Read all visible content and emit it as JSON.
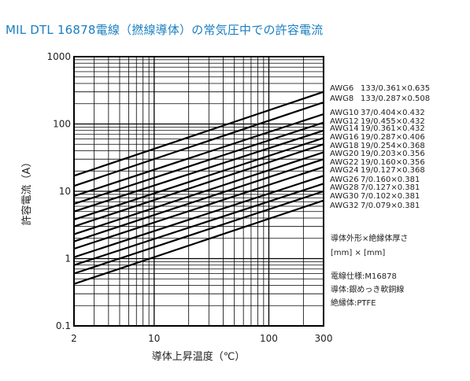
{
  "title": "MIL DTL 16878電線（撚線導体）の常気圧中での許容電流",
  "chart_data": {
    "type": "line",
    "title": "MIL DTL 16878電線（撚線導体）の常気圧中での許容電流",
    "xlabel": "導体上昇温度（℃）",
    "ylabel": "許容電流（A）",
    "xscale": "log",
    "yscale": "log",
    "xlim": [
      2,
      300
    ],
    "ylim": [
      0.1,
      1000
    ],
    "grid": true,
    "x_ticks": [
      "2",
      "10",
      "100",
      "300"
    ],
    "y_ticks": [
      "1000",
      "100",
      "10",
      "1",
      "0.1"
    ],
    "legend_position": "right",
    "series": [
      {
        "name": "AWG6",
        "spec": "133/0.361×0.635",
        "x": [
          2,
          300
        ],
        "y": [
          17,
          300
        ]
      },
      {
        "name": "AWG8",
        "spec": "133/0.287×0.508",
        "x": [
          2,
          300
        ],
        "y": [
          12,
          210
        ]
      },
      {
        "name": "AWG10",
        "spec": "37/0.404×0.432",
        "x": [
          2,
          300
        ],
        "y": [
          8.5,
          140
        ]
      },
      {
        "name": "AWG12",
        "spec": "19/0.455×0.432",
        "x": [
          2,
          300
        ],
        "y": [
          6.5,
          105
        ]
      },
      {
        "name": "AWG14",
        "spec": "19/0.361×0.432",
        "x": [
          2,
          300
        ],
        "y": [
          5,
          80
        ]
      },
      {
        "name": "AWG16",
        "spec": "19/0.287×0.406",
        "x": [
          2,
          300
        ],
        "y": [
          3.8,
          62
        ]
      },
      {
        "name": "AWG18",
        "spec": "19/0.254×0.368",
        "x": [
          2,
          300
        ],
        "y": [
          3,
          50
        ]
      },
      {
        "name": "AWG20",
        "spec": "19/0.203×0.356",
        "x": [
          2,
          300
        ],
        "y": [
          2.3,
          38
        ]
      },
      {
        "name": "AWG22",
        "spec": "19/0.160×0.356",
        "x": [
          2,
          300
        ],
        "y": [
          1.8,
          30
        ]
      },
      {
        "name": "AWG24",
        "spec": "19/0.127×0.368",
        "x": [
          2,
          300
        ],
        "y": [
          1.4,
          23
        ]
      },
      {
        "name": "AWG26",
        "spec": "7/0.160×0.381",
        "x": [
          2,
          300
        ],
        "y": [
          1.05,
          17
        ]
      },
      {
        "name": "AWG28",
        "spec": "7/0.127×0.381",
        "x": [
          2,
          300
        ],
        "y": [
          0.8,
          13
        ]
      },
      {
        "name": "AWG30",
        "spec": "7/0.102×0.381",
        "x": [
          2,
          300
        ],
        "y": [
          0.6,
          10
        ]
      },
      {
        "name": "AWG32",
        "spec": "7/0.079×0.381",
        "x": [
          2,
          300
        ],
        "y": [
          0.42,
          7.3
        ]
      }
    ],
    "annotations": {
      "header_line1": "導体外形×絶縁体厚さ",
      "header_line2": "[mm] × [mm]",
      "spec": "電線仕様:M16878",
      "conductor": "導体:銀めっき軟銅線",
      "insulation": "絶縁体:PTFE"
    }
  }
}
